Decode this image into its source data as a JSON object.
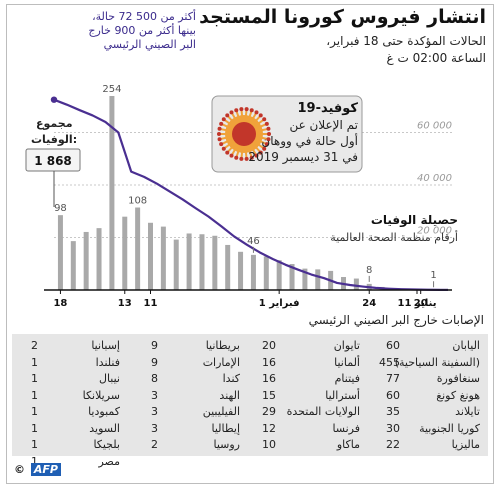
{
  "header": {
    "title": "انتشار فيروس كورونا المستجد",
    "subtitle1": "الحالات المؤكدة حتى 18 فبراير،",
    "subtitle2": "الساعة 02:00 ت غ"
  },
  "note": {
    "line1": "أكثر من 500 72 حالة،",
    "line2": "بينها أكثر من 900 خارج",
    "line3": "البر الصيني الرئيسي"
  },
  "colors": {
    "line": "#4a2f91",
    "bar": "#a9a9a9",
    "virus_outer": "#f0a23a",
    "virus_inner": "#c2362a"
  },
  "chart_data": {
    "type": "bar+line",
    "y_ticks": [
      20000,
      40000,
      60000
    ],
    "y_tick_labels": [
      "20 000",
      "40 000",
      "60 000"
    ],
    "ylim": [
      0,
      80000
    ],
    "x_tick_labels": [
      "18",
      "13",
      "11",
      "1 فبراير",
      "24",
      "20",
      "11 يناير"
    ],
    "bar_series": {
      "name": "حصيلة الوفيات",
      "values": [
        98,
        64,
        76,
        81,
        254,
        96,
        108,
        88,
        83,
        66,
        74,
        73,
        71,
        59,
        50,
        46,
        44,
        39,
        34,
        28,
        27,
        25,
        17,
        15,
        8,
        4,
        2,
        2,
        1,
        1
      ],
      "labels": {
        "0": "98",
        "4": "254",
        "6": "108",
        "15": "46",
        "24": "8",
        "29": "1"
      }
    },
    "line_series": {
      "name": "الحالات المؤكدة",
      "values": [
        72500,
        70600,
        68500,
        66500,
        64000,
        60000,
        45100,
        43100,
        40500,
        37500,
        34500,
        31200,
        28000,
        24300,
        20400,
        17200,
        14300,
        11800,
        9600,
        7700,
        5900,
        4500,
        2700,
        1900,
        1300,
        800,
        500,
        300,
        200,
        100,
        45
      ]
    }
  },
  "toll": {
    "label1": "مجموع",
    "label2": "الوفيات:",
    "value": "1 868"
  },
  "legend": {
    "title": "حصيلة الوفيات",
    "subtitle": "أرقام منظمة الصحة العالمية"
  },
  "virus_box": {
    "title": "كوفيد-19",
    "line1": "تم الإعلان عن",
    "line2": "أول حالة في ووهان",
    "line3": "في 31 ديسمبر 2019"
  },
  "table": {
    "title": "الإصابات خارج البر الصيني الرئيسي",
    "columns": [
      [
        {
          "name": "اليابان",
          "value": "60"
        },
        {
          "name": "(السفينة السياحية)",
          "value": "455"
        },
        {
          "name": "سنغافورة",
          "value": "77"
        },
        {
          "name": "هونغ كونغ",
          "value": "60"
        },
        {
          "name": "تايلاند",
          "value": "35"
        },
        {
          "name": "كوريا الجنوبية",
          "value": "30"
        },
        {
          "name": "ماليزيا",
          "value": "22"
        }
      ],
      [
        {
          "name": "تايوان",
          "value": "20"
        },
        {
          "name": "ألمانيا",
          "value": "16"
        },
        {
          "name": "فيتنام",
          "value": "16"
        },
        {
          "name": "أستراليا",
          "value": "15"
        },
        {
          "name": "الولايات المتحدة",
          "value": "29"
        },
        {
          "name": "فرنسا",
          "value": "12"
        },
        {
          "name": "ماكاو",
          "value": "10"
        }
      ],
      [
        {
          "name": "بريطانيا",
          "value": "9"
        },
        {
          "name": "الإمارات",
          "value": "9"
        },
        {
          "name": "كندا",
          "value": "8"
        },
        {
          "name": "الهند",
          "value": "3"
        },
        {
          "name": "الفيليبين",
          "value": "3"
        },
        {
          "name": "إيطاليا",
          "value": "3"
        },
        {
          "name": "روسيا",
          "value": "2"
        }
      ],
      [
        {
          "name": "إسبانيا",
          "value": "2"
        },
        {
          "name": "فنلندا",
          "value": "1"
        },
        {
          "name": "نيبال",
          "value": "1"
        },
        {
          "name": "سريلانكا",
          "value": "1"
        },
        {
          "name": "كمبوديا",
          "value": "1"
        },
        {
          "name": "السويد",
          "value": "1"
        },
        {
          "name": "بلجيكا",
          "value": "1"
        },
        {
          "name": "مصر",
          "value": "1"
        }
      ]
    ]
  },
  "credit": {
    "copyright": "©",
    "logo": "AFP"
  }
}
